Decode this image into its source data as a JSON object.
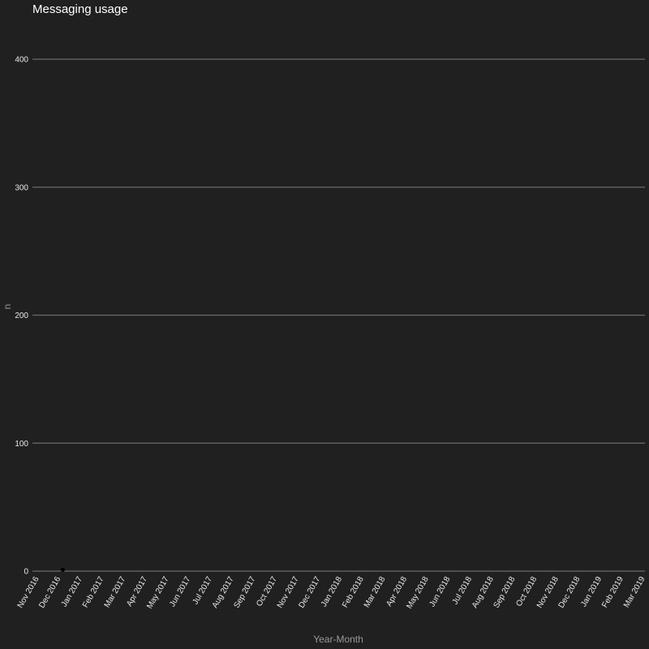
{
  "chart_data": {
    "type": "scatter",
    "title": "Messaging usage",
    "xlabel": "Year-Month",
    "ylabel": "n",
    "x_ticks": [
      "Nov 2016",
      "Dec 2016",
      "Jan 2017",
      "Feb 2017",
      "Mar 2017",
      "Apr 2017",
      "May 2017",
      "Jun 2017",
      "Jul 2017",
      "Aug 2017",
      "Sep 2017",
      "Oct 2017",
      "Nov 2017",
      "Dec 2017",
      "Jan 2018",
      "Feb 2018",
      "Mar 2018",
      "Apr 2018",
      "May 2018",
      "Jun 2018",
      "Jul 2018",
      "Aug 2018",
      "Sep 2018",
      "Oct 2018",
      "Nov 2018",
      "Dec 2018",
      "Jan 2019",
      "Feb 2019",
      "Mar 2019"
    ],
    "y_ticks": [
      0,
      100,
      200,
      300,
      400
    ],
    "ylim": [
      0,
      400
    ],
    "grid": true,
    "background": "#202020",
    "point_color": "#000000",
    "points": [
      {
        "x": "Dec 2016",
        "y": 1
      }
    ]
  }
}
